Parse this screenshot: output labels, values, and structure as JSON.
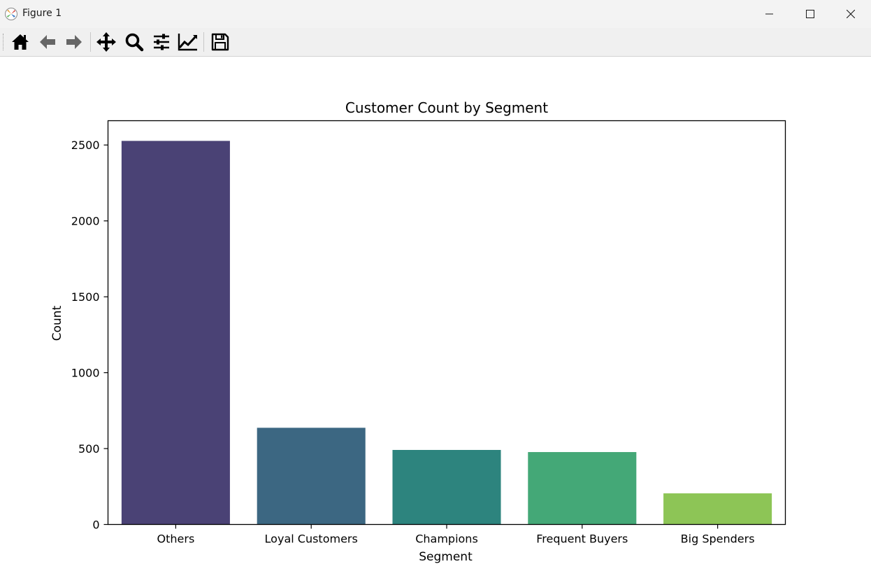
{
  "window": {
    "title": "Figure 1",
    "icons": [
      "matplotlib-app-icon",
      "minimize-icon",
      "maximize-icon",
      "close-icon"
    ]
  },
  "toolbar": {
    "items": [
      "home-icon",
      "back-arrow-icon",
      "forward-arrow-icon",
      "pan-icon",
      "zoom-icon",
      "configure-subplots-icon",
      "edit-axes-icon",
      "save-icon"
    ]
  },
  "chart_data": {
    "type": "bar",
    "title": "Customer Count by Segment",
    "xlabel": "Segment",
    "ylabel": "Count",
    "categories": [
      "Others",
      "Loyal Customers",
      "Champions",
      "Frequent Buyers",
      "Big Spenders"
    ],
    "values": [
      2527,
      637,
      491,
      477,
      205
    ],
    "colors": [
      "#4a4275",
      "#3c6782",
      "#2d847e",
      "#44a877",
      "#8dc556"
    ],
    "ylim": [
      0,
      2660
    ],
    "yticks": [
      0,
      500,
      1000,
      1500,
      2000,
      2500
    ],
    "grid": false,
    "legend": false
  }
}
